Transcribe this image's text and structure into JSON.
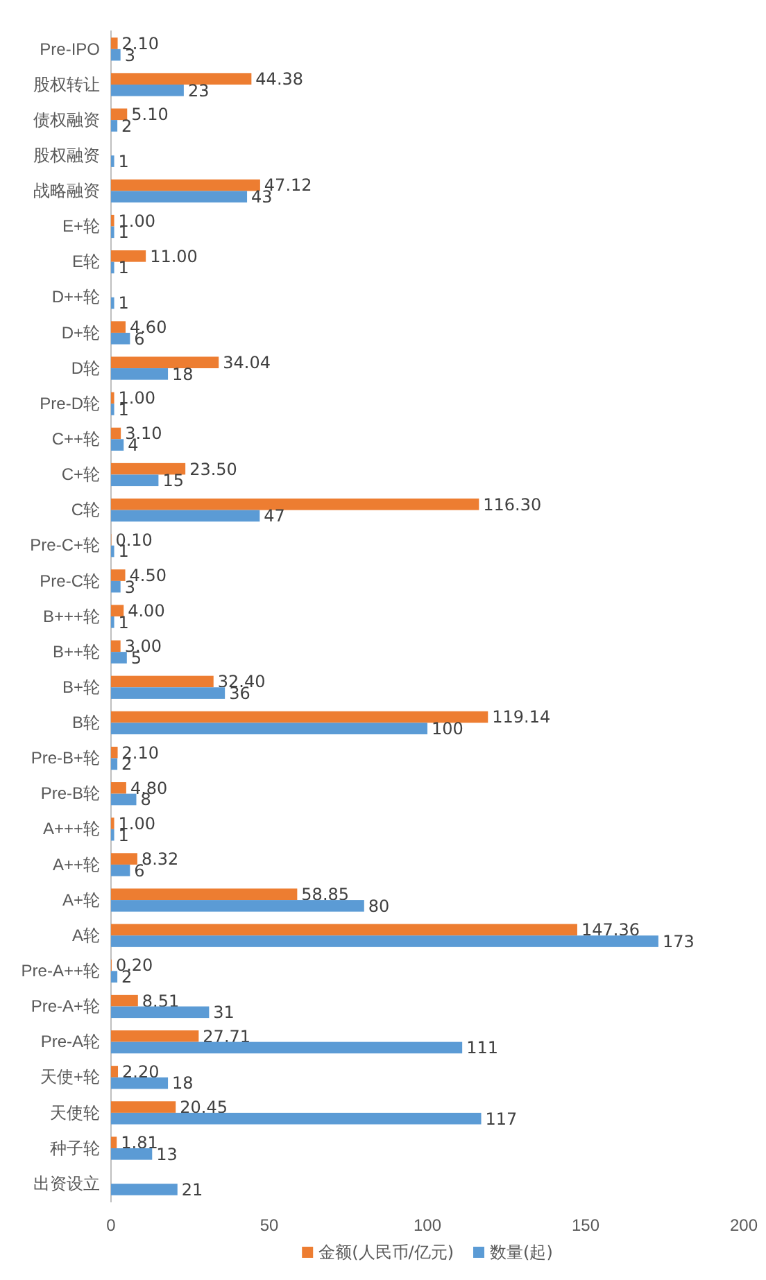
{
  "chart_data": {
    "type": "bar",
    "orientation": "horizontal",
    "categories": [
      "Pre-IPO",
      "股权转让",
      "债权融资",
      "股权融资",
      "战略融资",
      "E+轮",
      "E轮",
      "D++轮",
      "D+轮",
      "D轮",
      "Pre-D轮",
      "C++轮",
      "C+轮",
      "C轮",
      "Pre-C+轮",
      "Pre-C轮",
      "B+++轮",
      "B++轮",
      "B+轮",
      "B轮",
      "Pre-B+轮",
      "Pre-B轮",
      "A+++轮",
      "A++轮",
      "A+轮",
      "A轮",
      "Pre-A++轮",
      "Pre-A+轮",
      "Pre-A轮",
      "天使+轮",
      "天使轮",
      "种子轮",
      "出资设立"
    ],
    "series": [
      {
        "name": "金额(人民币/亿元)",
        "color": "#ed7d31",
        "values": [
          2.1,
          44.38,
          5.1,
          null,
          47.12,
          1,
          11,
          null,
          4.6,
          34.04,
          1,
          3.1,
          23.5,
          116.3,
          0.1,
          4.5,
          4,
          3,
          32.4,
          119.14,
          2.1,
          4.8,
          1,
          8.32,
          58.85,
          147.36,
          0.2,
          8.51,
          27.71,
          2.2,
          20.45,
          1.81,
          null
        ],
        "value_labels": [
          "2.10",
          "44.38",
          "5.10",
          null,
          "47.12",
          "1.00",
          "11.00",
          null,
          "4.60",
          "34.04",
          "1.00",
          "3.10",
          "23.50",
          "116.30",
          "0.10",
          "4.50",
          "4.00",
          "3.00",
          "32.40",
          "119.14",
          "2.10",
          "4.80",
          "1.00",
          "8.32",
          "58.85",
          "147.36",
          "0.20",
          "8.51",
          "27.71",
          "2.20",
          "20.45",
          "1.81",
          null
        ]
      },
      {
        "name": "数量(起)",
        "color": "#5b9bd5",
        "values": [
          3,
          23,
          2,
          1,
          43,
          1,
          1,
          1,
          6,
          18,
          1,
          4,
          15,
          47,
          1,
          3,
          1,
          5,
          36,
          100,
          2,
          8,
          1,
          6,
          80,
          173,
          2,
          31,
          111,
          18,
          117,
          13,
          21
        ],
        "value_labels": [
          "3",
          "23",
          "2",
          "1",
          "43",
          "1",
          "1",
          "1",
          "6",
          "18",
          "1",
          "4",
          "15",
          "47",
          "1",
          "3",
          "1",
          "5",
          "36",
          "100",
          "2",
          "8",
          "1",
          "6",
          "80",
          "173",
          "2",
          "31",
          "111",
          "18",
          "117",
          "13",
          "21"
        ]
      }
    ],
    "xlim": [
      0,
      200
    ],
    "xticks": [
      0,
      50,
      100,
      150,
      200
    ],
    "grid": false,
    "legend": "bottom"
  }
}
